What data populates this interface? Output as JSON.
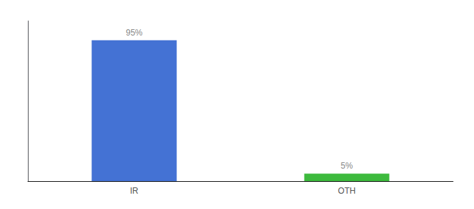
{
  "chart_data": {
    "type": "bar",
    "categories": [
      "IR",
      "OTH"
    ],
    "values": [
      95,
      5
    ],
    "colors": [
      "#4472d4",
      "#3dba3d"
    ],
    "value_labels": [
      "95%",
      "5%"
    ],
    "data_labels": true,
    "ylim": [
      0,
      108
    ],
    "yticks": [],
    "tick_labels": "x",
    "grid": false
  }
}
